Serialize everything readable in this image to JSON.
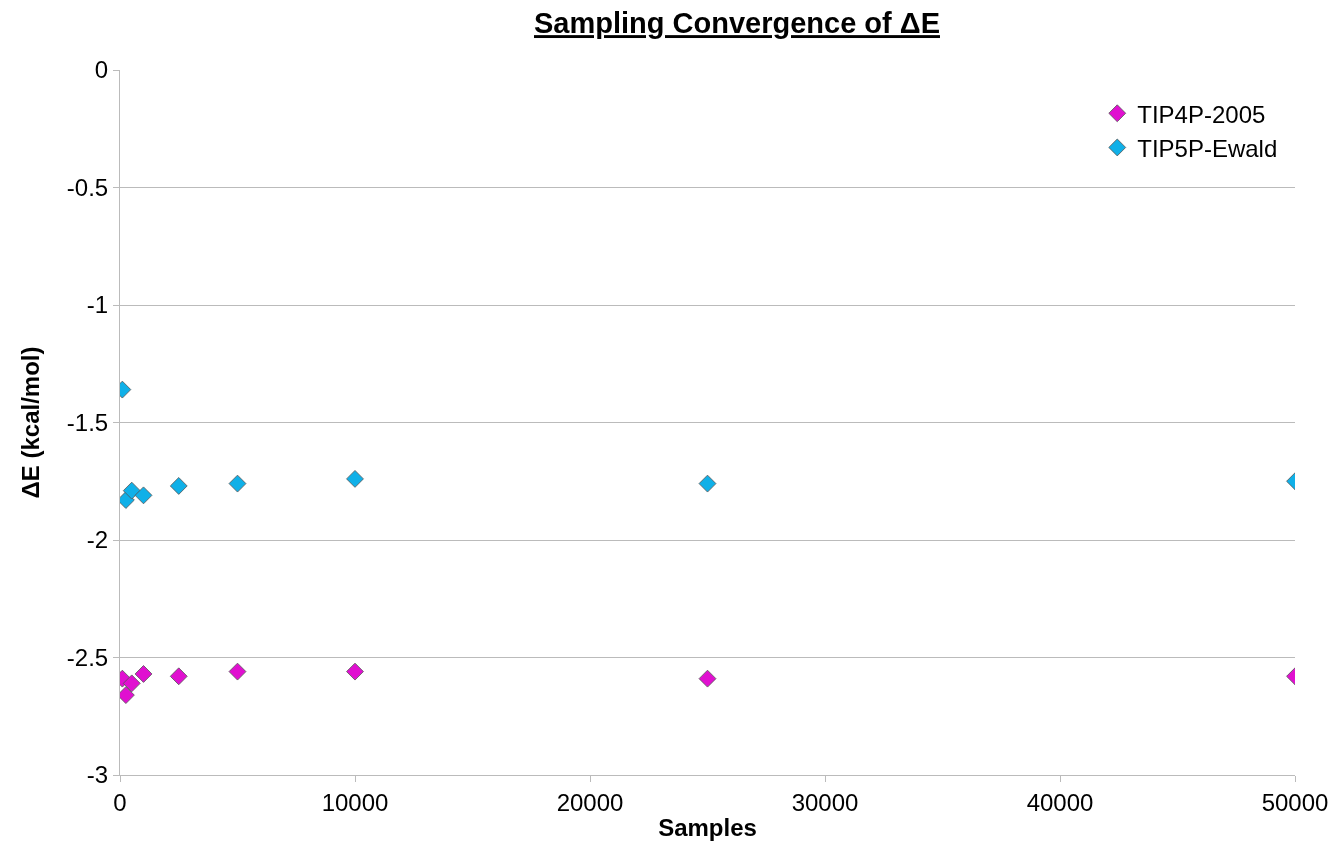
{
  "chart_data": {
    "type": "scatter",
    "title": "Sampling Convergence of ΔE",
    "xlabel": "Samples",
    "ylabel": "ΔE (kcal/mol)",
    "x": [
      100,
      250,
      500,
      1000,
      2500,
      5000,
      10000,
      25000,
      50000
    ],
    "series": [
      {
        "name": "TIP4P-2005",
        "color": "#e010d0",
        "values": [
          -2.59,
          -2.66,
          -2.61,
          -2.57,
          -2.58,
          -2.56,
          -2.56,
          -2.59,
          -2.58
        ]
      },
      {
        "name": "TIP5P-Ewald",
        "color": "#10b0e8",
        "values": [
          -1.36,
          -1.83,
          -1.79,
          -1.81,
          -1.77,
          -1.76,
          -1.74,
          -1.76,
          -1.75
        ]
      }
    ],
    "xlim": [
      0,
      50000
    ],
    "xticks": [
      0,
      10000,
      20000,
      30000,
      40000,
      50000
    ],
    "ylim": [
      -3,
      0
    ],
    "yticks": [
      -3,
      -2.5,
      -2,
      -1.5,
      -1,
      -0.5,
      0
    ],
    "grid": "y",
    "legend": "top right",
    "marker": "diamond"
  }
}
